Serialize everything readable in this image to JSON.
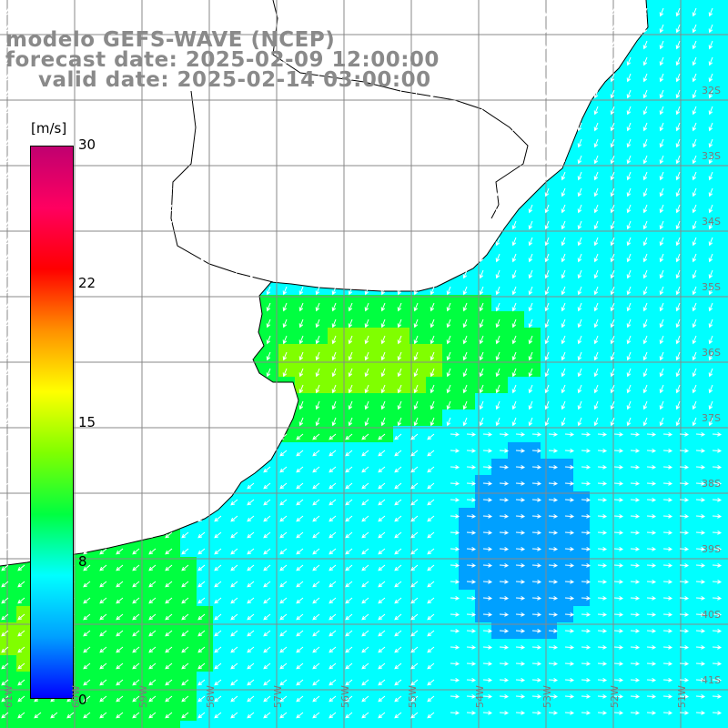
{
  "title": {
    "line1": "modelo GEFS-WAVE (NCEP)",
    "line2": "forecast date: 2025-02-09 12:00:00",
    "line3": "valid date: 2025-02-14 03:00:00"
  },
  "colorbar": {
    "unit": "[m/s]",
    "ticks": [
      "30",
      "22",
      "15",
      "8",
      "0"
    ],
    "tick_values": [
      30,
      22,
      15,
      8,
      0
    ],
    "min": 0,
    "max": 30,
    "colors": [
      "#0000ff",
      "#00a0ff",
      "#00ffff",
      "#00ff40",
      "#80ff00",
      "#ffff00",
      "#ff9000",
      "#ff0000",
      "#ff0060",
      "#c00070"
    ]
  },
  "map": {
    "land_color": "#ffffff",
    "coastline_color": "#000000",
    "grid_color": "#888888",
    "arrow_color": "#ffffff",
    "lat_labels": [
      "32S",
      "33S",
      "34S",
      "35S",
      "36S",
      "37S",
      "38S",
      "39S",
      "40S",
      "41S"
    ],
    "lon_labels": [
      "61W",
      "60W",
      "59W",
      "58W",
      "57W",
      "56W",
      "55W",
      "54W",
      "53W",
      "52W",
      "51W"
    ]
  }
}
